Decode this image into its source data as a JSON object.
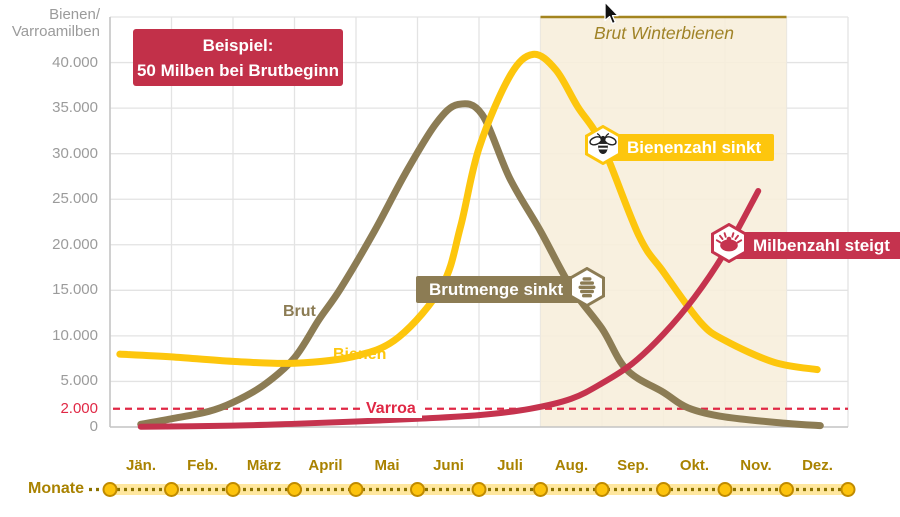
{
  "axis_title": {
    "line1": "Bienen/",
    "line2": "Varroamilben"
  },
  "example_box": {
    "line1": "Beispiel:",
    "line2": "50 Milben bei Brutbeginn"
  },
  "region_label": "Brut Winterbienen",
  "badges": {
    "bienen": {
      "label": "Bienenzahl sinkt",
      "icon": "bee-icon"
    },
    "brut": {
      "label": "Brutmenge sinkt",
      "icon": "beehive-icon"
    },
    "milben": {
      "label": "Milbenzahl steigt",
      "icon": "mite-icon"
    }
  },
  "curve_labels": {
    "brut": "Brut",
    "bienen": "Bienen",
    "varroa": "Varroa"
  },
  "x_axis": {
    "label": "Monate",
    "months": [
      "Jän.",
      "Feb.",
      "März",
      "April",
      "Mai",
      "Juni",
      "Juli",
      "Aug.",
      "Sep.",
      "Okt.",
      "Nov.",
      "Dez."
    ]
  },
  "y_axis": {
    "ticks": [
      {
        "label": "40.000",
        "value": 40000,
        "accent": false
      },
      {
        "label": "35.000",
        "value": 35000,
        "accent": false
      },
      {
        "label": "30.000",
        "value": 30000,
        "accent": false
      },
      {
        "label": "25.000",
        "value": 25000,
        "accent": false
      },
      {
        "label": "20.000",
        "value": 20000,
        "accent": false
      },
      {
        "label": "15.000",
        "value": 15000,
        "accent": false
      },
      {
        "label": "10.000",
        "value": 10000,
        "accent": false
      },
      {
        "label": "5.000",
        "value": 5000,
        "accent": false
      },
      {
        "label": "2.000",
        "value": 2000,
        "accent": true
      },
      {
        "label": "0",
        "value": 0,
        "accent": false
      }
    ]
  },
  "colors": {
    "bienen": "#fdc60d",
    "brut": "#8c7c54",
    "varroa": "#c5334e",
    "dashed-red": "#e02845",
    "region-fill": "#f7eedb",
    "region-border": "#a3841f",
    "grid": "#e3e3e3",
    "axis": "#c4c4c4",
    "tick-text": "#9b9b9b",
    "gold-text": "#a08327",
    "month-text": "#a98200",
    "track-dot": "#8a7200",
    "track-band": "#ffe79e",
    "circle-fill": "#fdc30c",
    "circle-stroke": "#c08b00",
    "example-box": "#c23049"
  },
  "chart_data": {
    "type": "line",
    "title": "",
    "xlabel": "Monate",
    "ylabel": "Bienen/Varroamilben",
    "x_unit": "month fraction (0 = 1. Jän, 12 = 31. Dez)",
    "categories": [
      "Jän.",
      "Feb.",
      "März",
      "April",
      "Mai",
      "Juni",
      "Juli",
      "Aug.",
      "Sep.",
      "Okt.",
      "Nov.",
      "Dez."
    ],
    "ylim": [
      0,
      45000
    ],
    "grid": true,
    "threshold_line": {
      "value": 2000,
      "style": "dashed",
      "label": "Varroa"
    },
    "shaded_region": {
      "label": "Brut Winterbienen",
      "x_start": 7,
      "x_end": 11
    },
    "series": [
      {
        "name": "Brut",
        "points": [
          [
            0.5,
            300
          ],
          [
            1,
            900
          ],
          [
            1.6,
            1700
          ],
          [
            2,
            2700
          ],
          [
            2.5,
            4600
          ],
          [
            3,
            7600
          ],
          [
            3.4,
            11800
          ],
          [
            3.75,
            15200
          ],
          [
            4.3,
            21500
          ],
          [
            4.8,
            27800
          ],
          [
            5.3,
            33300
          ],
          [
            5.66,
            35400
          ],
          [
            6.05,
            34300
          ],
          [
            6.5,
            27300
          ],
          [
            7,
            21500
          ],
          [
            7.5,
            15300
          ],
          [
            8,
            10800
          ],
          [
            8.4,
            6300
          ],
          [
            9,
            3800
          ],
          [
            9.4,
            2100
          ],
          [
            10,
            1100
          ],
          [
            11,
            400
          ],
          [
            11.55,
            150
          ]
        ]
      },
      {
        "name": "Bienen",
        "points": [
          [
            0.16,
            8000
          ],
          [
            1,
            7700
          ],
          [
            2,
            7200
          ],
          [
            3,
            7000
          ],
          [
            4,
            7800
          ],
          [
            4.7,
            9900
          ],
          [
            5.4,
            15500
          ],
          [
            5.7,
            22000
          ],
          [
            6,
            30600
          ],
          [
            6.5,
            38500
          ],
          [
            6.88,
            40900
          ],
          [
            7.25,
            39200
          ],
          [
            7.6,
            35200
          ],
          [
            8,
            31000
          ],
          [
            8.6,
            21000
          ],
          [
            9,
            17000
          ],
          [
            9.6,
            11500
          ],
          [
            10,
            9500
          ],
          [
            10.8,
            7100
          ],
          [
            11.5,
            6300
          ]
        ]
      },
      {
        "name": "Varroa",
        "points": [
          [
            0.5,
            30
          ],
          [
            2,
            150
          ],
          [
            3,
            350
          ],
          [
            4,
            600
          ],
          [
            5,
            900
          ],
          [
            6,
            1300
          ],
          [
            6.83,
            2000
          ],
          [
            7.5,
            3100
          ],
          [
            8,
            4800
          ],
          [
            8.5,
            7000
          ],
          [
            9,
            10200
          ],
          [
            9.5,
            14200
          ],
          [
            10,
            19200
          ],
          [
            10.54,
            25900
          ]
        ]
      }
    ],
    "annotations": [
      {
        "text": "Beispiel: 50 Milben bei Brutbeginn"
      },
      {
        "text": "Bienenzahl sinkt",
        "series": "Bienen",
        "at_month": 8
      },
      {
        "text": "Brutmenge sinkt",
        "series": "Brut",
        "at_month": 7.5
      },
      {
        "text": "Milbenzahl steigt",
        "series": "Varroa",
        "at_month": 10.08
      }
    ]
  }
}
